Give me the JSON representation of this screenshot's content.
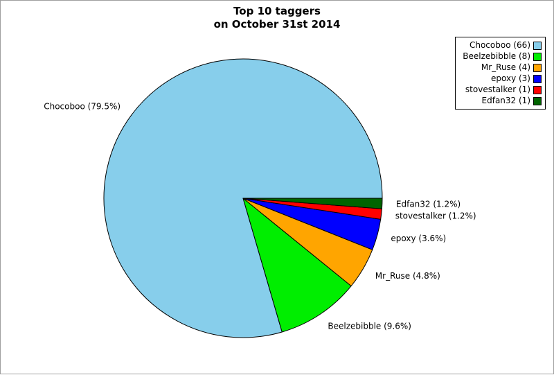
{
  "page": {
    "background": "#ffffff",
    "frame_border_color": "#9e9e9e"
  },
  "chart_data": {
    "type": "pie",
    "title_lines": [
      "Top 10 taggers",
      "on October 31st 2014"
    ],
    "start_angle_deg": 0,
    "direction": "counterclockwise",
    "grid": false,
    "legend_position": "top-right",
    "legend_marker_side": "right",
    "total_tags": 83,
    "slices": [
      {
        "name": "Chocoboo",
        "count": 66,
        "percent": 79.5,
        "percent_label": "Chocoboo (79.5%)",
        "legend_label": "Chocoboo (66)",
        "color": "#87ceeb"
      },
      {
        "name": "Beelzebibble",
        "count": 8,
        "percent": 9.6,
        "percent_label": "Beelzebibble (9.6%)",
        "legend_label": "Beelzebibble (8)",
        "color": "#00ee00"
      },
      {
        "name": "Mr_Ruse",
        "count": 4,
        "percent": 4.8,
        "percent_label": "Mr_Ruse (4.8%)",
        "legend_label": "Mr_Ruse (4)",
        "color": "#ffa500"
      },
      {
        "name": "epoxy",
        "count": 3,
        "percent": 3.6,
        "percent_label": "epoxy (3.6%)",
        "legend_label": "epoxy (3)",
        "color": "#0000ff"
      },
      {
        "name": "stovestalker",
        "count": 1,
        "percent": 1.2,
        "percent_label": "stovestalker (1.2%)",
        "legend_label": "stovestalker (1)",
        "color": "#ff0000"
      },
      {
        "name": "Edfan32",
        "count": 1,
        "percent": 1.2,
        "percent_label": "Edfan32 (1.2%)",
        "legend_label": "Edfan32 (1)",
        "color": "#006400"
      }
    ],
    "edge_color": "#000000"
  }
}
